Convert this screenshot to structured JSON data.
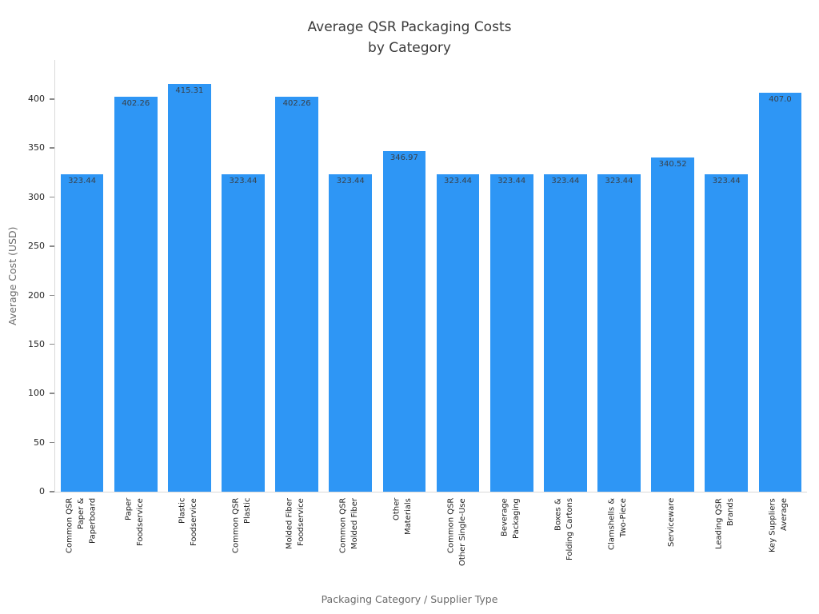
{
  "title_display": "Average QSR Packaging Costs\nby Category",
  "chart_data": {
    "type": "bar",
    "title": "Average QSR Packaging Costs by Category",
    "xlabel": "Packaging Category / Supplier Type",
    "ylabel": "Average Cost (USD)",
    "ylim": [
      0,
      440
    ],
    "yticks": [
      0,
      50,
      100,
      150,
      200,
      250,
      300,
      350,
      400
    ],
    "grid": false,
    "legend": false,
    "bar_color": "#2E96F5",
    "value_label_color": "#38414A",
    "categories": [
      "Common QSR\nPaper &\nPaperboard",
      "Paper\nFoodservice",
      "Plastic\nFoodservice",
      "Common QSR\nPlastic",
      "Molded Fiber\nFoodservice",
      "Common QSR\nMolded Fiber",
      "Other\nMaterials",
      "Common QSR\nOther Single-Use",
      "Beverage\nPackaging",
      "Boxes &\nFolding Cartons",
      "Clamshells &\nTwo-Piece",
      "Serviceware",
      "Leading QSR\nBrands",
      "Key Suppliers\nAverage"
    ],
    "values": [
      323.44,
      402.26,
      415.31,
      323.44,
      402.26,
      323.44,
      346.97,
      323.44,
      323.44,
      323.44,
      323.44,
      340.52,
      323.44,
      407.0
    ],
    "value_labels": [
      "323.44",
      "402.26",
      "415.31",
      "323.44",
      "402.26",
      "323.44",
      "346.97",
      "323.44",
      "323.44",
      "323.44",
      "323.44",
      "340.52",
      "323.44",
      "407.0"
    ]
  }
}
